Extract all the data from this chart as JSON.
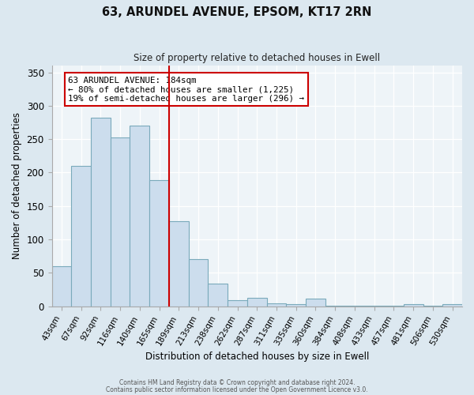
{
  "title": "63, ARUNDEL AVENUE, EPSOM, KT17 2RN",
  "subtitle": "Size of property relative to detached houses in Ewell",
  "xlabel": "Distribution of detached houses by size in Ewell",
  "ylabel": "Number of detached properties",
  "bar_labels": [
    "43sqm",
    "67sqm",
    "92sqm",
    "116sqm",
    "140sqm",
    "165sqm",
    "189sqm",
    "213sqm",
    "238sqm",
    "262sqm",
    "287sqm",
    "311sqm",
    "335sqm",
    "360sqm",
    "384sqm",
    "408sqm",
    "433sqm",
    "457sqm",
    "481sqm",
    "506sqm",
    "530sqm"
  ],
  "bar_heights": [
    60,
    210,
    282,
    252,
    270,
    189,
    127,
    70,
    34,
    9,
    13,
    5,
    3,
    11,
    1,
    1,
    1,
    1,
    3,
    1,
    3
  ],
  "bar_color": "#ccdded",
  "bar_edge_color": "#7aaabb",
  "vline_x": 5.5,
  "vline_color": "#cc0000",
  "annotation_title": "63 ARUNDEL AVENUE: 184sqm",
  "annotation_line1": "← 80% of detached houses are smaller (1,225)",
  "annotation_line2": "19% of semi-detached houses are larger (296) →",
  "annotation_box_color": "#ffffff",
  "annotation_box_edge": "#cc0000",
  "ylim": [
    0,
    360
  ],
  "yticks": [
    0,
    50,
    100,
    150,
    200,
    250,
    300,
    350
  ],
  "background_color": "#dce8f0",
  "plot_bg_color": "#eef4f8",
  "footer_line1": "Contains HM Land Registry data © Crown copyright and database right 2024.",
  "footer_line2": "Contains public sector information licensed under the Open Government Licence v3.0."
}
